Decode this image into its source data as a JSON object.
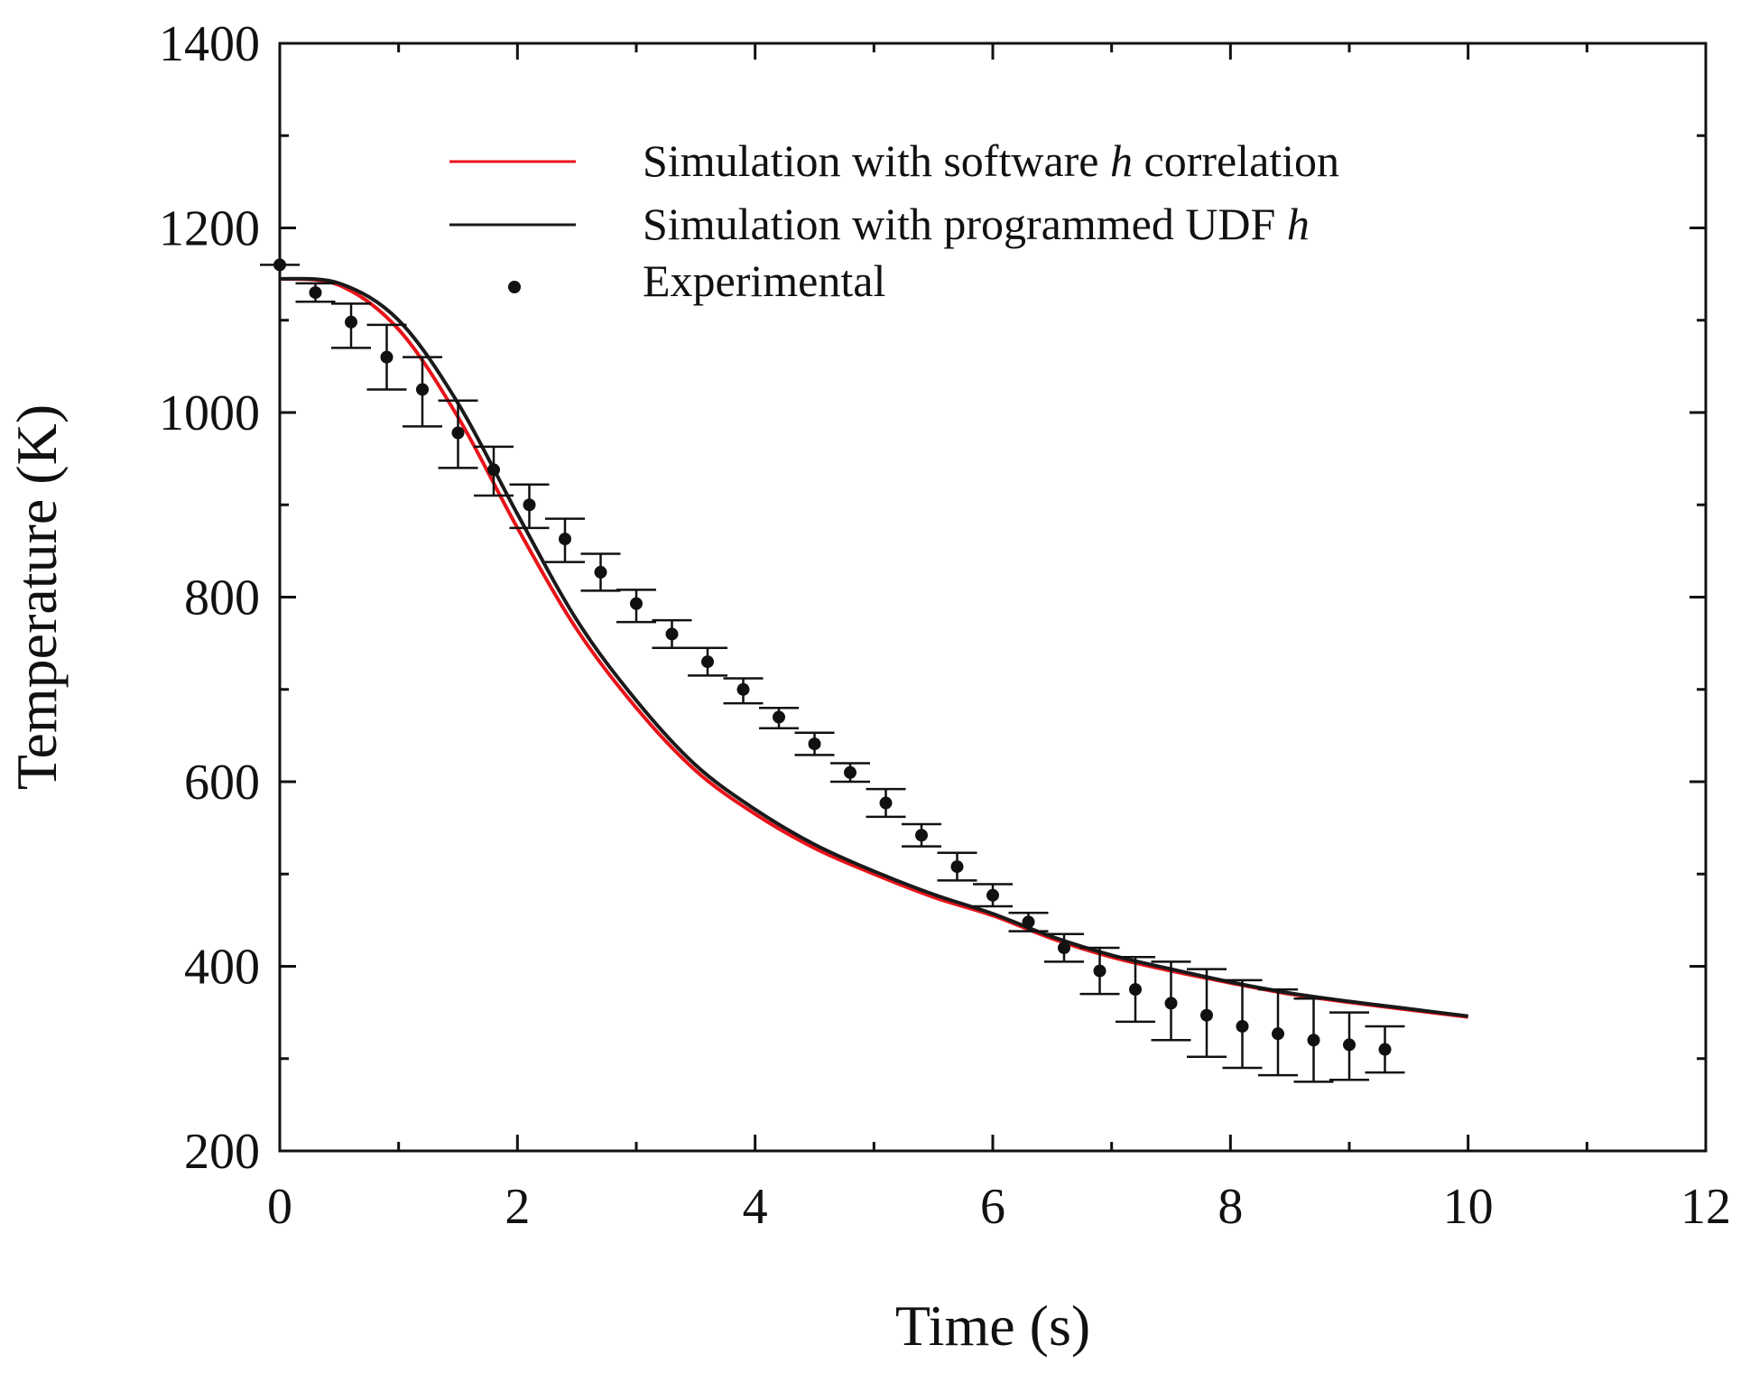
{
  "chart_data": {
    "type": "line",
    "title": "",
    "xlabel": "Time (s)",
    "ylabel": "Temperature (K)",
    "xlim": [
      0,
      12
    ],
    "ylim": [
      200,
      1400
    ],
    "xticks": [
      0,
      2,
      4,
      6,
      8,
      10,
      12
    ],
    "yticks": [
      200,
      400,
      600,
      800,
      1000,
      1200,
      1400
    ],
    "xtick_labels": [
      "0",
      "2",
      "4",
      "6",
      "8",
      "10",
      "12"
    ],
    "ytick_labels": [
      "200",
      "400",
      "600",
      "800",
      "1000",
      "1200",
      "1400"
    ],
    "grid": false,
    "legend_position": "top-center",
    "legend": [
      {
        "pre": "Simulation with software ",
        "italic": "h",
        "post": " correlation"
      },
      {
        "pre": "Simulation with programmed UDF ",
        "italic": "h",
        "post": ""
      },
      {
        "pre": "Experimental",
        "italic": "",
        "post": ""
      }
    ],
    "series": [
      {
        "name": "Simulation with software h correlation",
        "kind": "line",
        "color": "#e8141a",
        "x": [
          0,
          0.5,
          1,
          1.5,
          2,
          2.5,
          3,
          3.5,
          4,
          4.5,
          5,
          5.5,
          6,
          6.5,
          7,
          7.5,
          8,
          8.5,
          9,
          9.5,
          10
        ],
        "y": [
          1145,
          1138,
          1090,
          995,
          875,
          765,
          680,
          612,
          565,
          528,
          500,
          475,
          455,
          430,
          410,
          395,
          382,
          370,
          361,
          353,
          345
        ]
      },
      {
        "name": "Simulation with programmed UDF h",
        "kind": "line",
        "color": "#1a1a1a",
        "x": [
          0,
          0.5,
          1,
          1.5,
          2,
          2.5,
          3,
          3.5,
          4,
          4.5,
          5,
          5.5,
          6,
          6.5,
          7,
          7.5,
          8,
          8.5,
          9,
          9.5,
          10
        ],
        "y": [
          1145,
          1140,
          1100,
          1010,
          890,
          775,
          688,
          618,
          570,
          532,
          503,
          478,
          457,
          432,
          412,
          397,
          383,
          371,
          362,
          354,
          346
        ]
      },
      {
        "name": "Experimental",
        "kind": "scatter",
        "color": "#111111",
        "x": [
          0,
          0.3,
          0.6,
          0.9,
          1.2,
          1.5,
          1.8,
          2.1,
          2.4,
          2.7,
          3.0,
          3.3,
          3.6,
          3.9,
          4.2,
          4.5,
          4.8,
          5.1,
          5.4,
          5.7,
          6.0,
          6.3,
          6.6,
          6.9,
          7.2,
          7.5,
          7.8,
          8.1,
          8.4,
          8.7,
          9.0,
          9.3
        ],
        "y": [
          1160,
          1130,
          1098,
          1060,
          1025,
          978,
          938,
          900,
          863,
          827,
          793,
          760,
          730,
          700,
          670,
          641,
          610,
          577,
          542,
          508,
          477,
          448,
          420,
          395,
          375,
          360,
          347,
          335,
          327,
          320,
          315,
          310
        ],
        "err_upper": [
          0,
          10,
          20,
          35,
          35,
          35,
          25,
          22,
          22,
          20,
          15,
          15,
          15,
          12,
          10,
          12,
          10,
          15,
          12,
          15,
          12,
          10,
          15,
          25,
          35,
          45,
          50,
          50,
          48,
          45,
          35,
          25
        ],
        "err_lower": [
          0,
          10,
          28,
          35,
          40,
          38,
          28,
          25,
          25,
          20,
          20,
          15,
          15,
          15,
          12,
          12,
          10,
          15,
          12,
          15,
          12,
          10,
          15,
          25,
          35,
          40,
          45,
          45,
          45,
          45,
          38,
          25
        ]
      }
    ]
  }
}
